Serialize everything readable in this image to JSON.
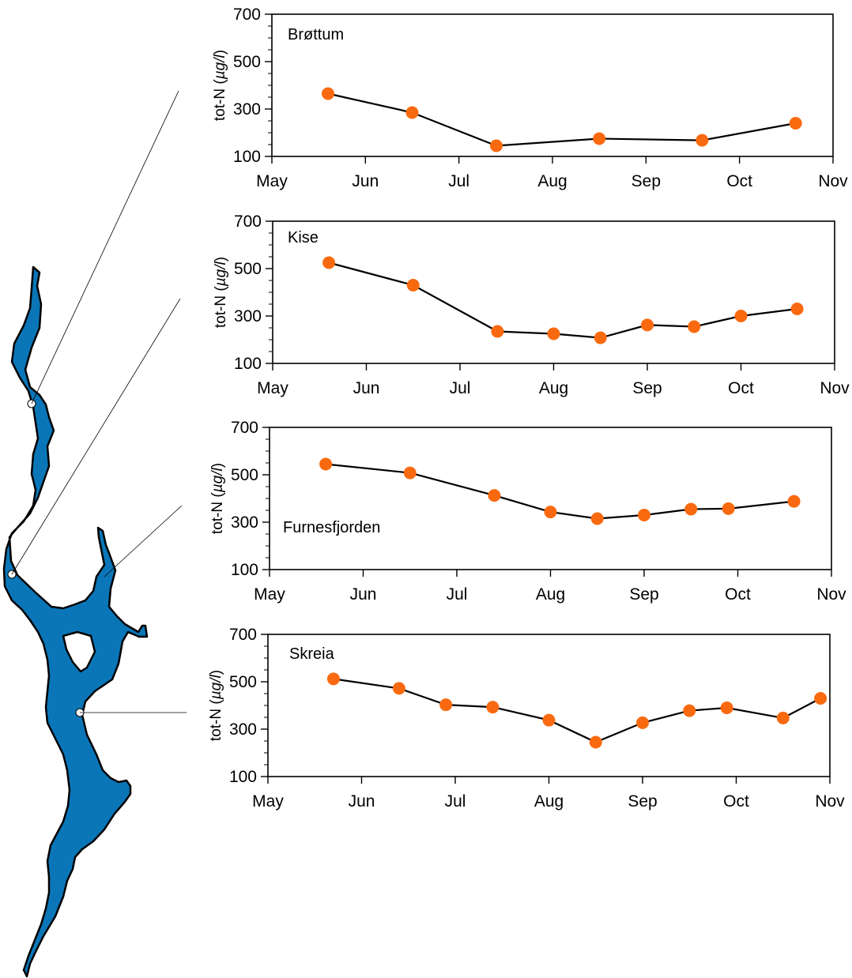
{
  "colors": {
    "lake_fill": "#0a76b8",
    "lake_outline": "#000000",
    "marker": "#f96a10",
    "line": "#000000"
  },
  "chart_data": [
    {
      "type": "line",
      "title": "Brøttum",
      "ylabel_prefix": "tot-N (",
      "ylabel_unit": "µg/l",
      "ylabel_suffix": ")",
      "xlim": [
        "May",
        "Nov"
      ],
      "xticks": [
        "May",
        "Jun",
        "Jul",
        "Aug",
        "Sep",
        "Oct",
        "Nov"
      ],
      "yticks": [
        100,
        300,
        500,
        700
      ],
      "ylim": [
        100,
        700
      ],
      "grid": false,
      "x": [
        0.6,
        1.5,
        2.4,
        3.5,
        4.6,
        5.6
      ],
      "y": [
        365,
        285,
        145,
        175,
        168,
        240
      ]
    },
    {
      "type": "line",
      "title": "Kise",
      "ylabel_prefix": "tot-N (",
      "ylabel_unit": "µg/l",
      "ylabel_suffix": ")",
      "xlim": [
        "May",
        "Nov"
      ],
      "xticks": [
        "May",
        "Jun",
        "Jul",
        "Aug",
        "Sep",
        "Oct",
        "Nov"
      ],
      "yticks": [
        100,
        300,
        500,
        700
      ],
      "ylim": [
        100,
        700
      ],
      "grid": false,
      "x": [
        0.6,
        1.5,
        2.4,
        3.0,
        3.5,
        4.0,
        4.5,
        5.0,
        5.6
      ],
      "y": [
        525,
        430,
        235,
        225,
        208,
        262,
        255,
        300,
        330
      ]
    },
    {
      "type": "line",
      "title": "Furnesfjorden",
      "ylabel_prefix": "tot-N (",
      "ylabel_unit": "µg/l",
      "ylabel_suffix": ")",
      "xlim": [
        "May",
        "Nov"
      ],
      "xticks": [
        "May",
        "Jun",
        "Jul",
        "Aug",
        "Sep",
        "Oct",
        "Nov"
      ],
      "yticks": [
        100,
        300,
        500,
        700
      ],
      "ylim": [
        100,
        700
      ],
      "grid": false,
      "x": [
        0.6,
        1.5,
        2.4,
        3.0,
        3.5,
        4.0,
        4.5,
        4.9,
        5.6
      ],
      "y": [
        545,
        508,
        413,
        343,
        315,
        330,
        355,
        357,
        388
      ]
    },
    {
      "type": "line",
      "title": "Skreia",
      "ylabel_prefix": "tot-N (",
      "ylabel_unit": "µg/l",
      "ylabel_suffix": ")",
      "xlim": [
        "May",
        "Nov"
      ],
      "xticks": [
        "May",
        "Jun",
        "Jul",
        "Aug",
        "Sep",
        "Oct",
        "Nov"
      ],
      "yticks": [
        100,
        300,
        500,
        700
      ],
      "ylim": [
        100,
        700
      ],
      "grid": false,
      "x": [
        0.7,
        1.4,
        1.9,
        2.4,
        3.0,
        3.5,
        4.0,
        4.5,
        4.9,
        5.5,
        5.9
      ],
      "y": [
        512,
        472,
        403,
        393,
        338,
        245,
        327,
        378,
        390,
        347,
        430
      ]
    }
  ]
}
